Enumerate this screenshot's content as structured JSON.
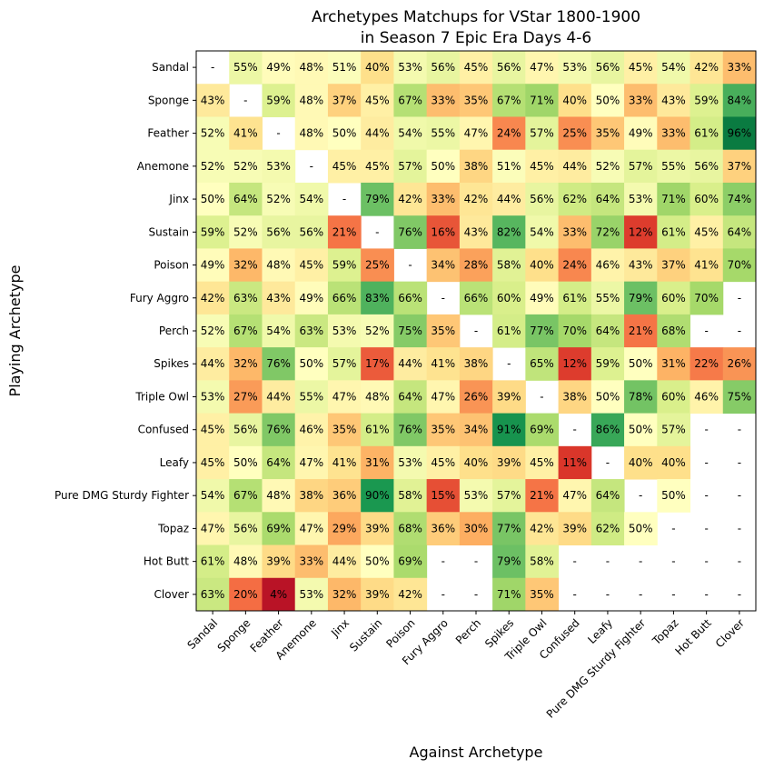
{
  "chart_data": {
    "type": "heatmap",
    "title": [
      "Archetypes Matchups for VStar 1800-1900",
      "in Season 7 Epic Era Days 4-6"
    ],
    "xlabel": "Against Archetype",
    "ylabel": "Playing Archetype",
    "rows": [
      "Sandal",
      "Sponge",
      "Feather",
      "Anemone",
      "Jinx",
      "Sustain",
      "Poison",
      "Fury Aggro",
      "Perch",
      "Spikes",
      "Triple Owl",
      "Confused",
      "Leafy",
      "Pure DMG Sturdy Fighter",
      "Topaz",
      "Hot Butt",
      "Clover"
    ],
    "columns": [
      "Sandal",
      "Sponge",
      "Feather",
      "Anemone",
      "Jinx",
      "Sustain",
      "Poison",
      "Fury Aggro",
      "Perch",
      "Spikes",
      "Triple Owl",
      "Confused",
      "Leafy",
      "Pure DMG Sturdy Fighter",
      "Topaz",
      "Hot Butt",
      "Clover"
    ],
    "values": [
      [
        null,
        55,
        49,
        48,
        51,
        40,
        53,
        56,
        45,
        56,
        47,
        53,
        56,
        45,
        54,
        42,
        33
      ],
      [
        43,
        null,
        59,
        48,
        37,
        45,
        67,
        33,
        35,
        67,
        71,
        40,
        50,
        33,
        43,
        59,
        84
      ],
      [
        52,
        41,
        null,
        48,
        50,
        44,
        54,
        55,
        47,
        24,
        57,
        25,
        35,
        49,
        33,
        61,
        96
      ],
      [
        52,
        52,
        53,
        null,
        45,
        45,
        57,
        50,
        38,
        51,
        45,
        44,
        52,
        57,
        55,
        56,
        37
      ],
      [
        50,
        64,
        52,
        54,
        null,
        79,
        42,
        33,
        42,
        44,
        56,
        62,
        64,
        53,
        71,
        60,
        74
      ],
      [
        59,
        52,
        56,
        56,
        21,
        null,
        76,
        16,
        43,
        82,
        54,
        33,
        72,
        12,
        61,
        45,
        64
      ],
      [
        49,
        32,
        48,
        45,
        59,
        25,
        null,
        34,
        28,
        58,
        40,
        24,
        46,
        43,
        37,
        41,
        70
      ],
      [
        42,
        63,
        43,
        49,
        66,
        83,
        66,
        null,
        66,
        60,
        49,
        61,
        55,
        79,
        60,
        70,
        null
      ],
      [
        52,
        67,
        54,
        63,
        53,
        52,
        75,
        35,
        null,
        61,
        77,
        70,
        64,
        21,
        68,
        null,
        null
      ],
      [
        44,
        32,
        76,
        50,
        57,
        17,
        44,
        41,
        38,
        null,
        65,
        12,
        59,
        50,
        31,
        22,
        26
      ],
      [
        53,
        27,
        44,
        55,
        47,
        48,
        64,
        47,
        26,
        39,
        null,
        38,
        50,
        78,
        60,
        46,
        75
      ],
      [
        45,
        56,
        76,
        46,
        35,
        61,
        76,
        35,
        34,
        91,
        69,
        null,
        86,
        50,
        57,
        null,
        null
      ],
      [
        45,
        50,
        64,
        47,
        41,
        31,
        53,
        45,
        40,
        39,
        45,
        11,
        null,
        40,
        40,
        null,
        null
      ],
      [
        54,
        67,
        48,
        38,
        36,
        90,
        58,
        15,
        53,
        57,
        21,
        47,
        64,
        null,
        50,
        null,
        null
      ],
      [
        47,
        56,
        69,
        47,
        29,
        39,
        68,
        36,
        30,
        77,
        42,
        39,
        62,
        50,
        null,
        null,
        null
      ],
      [
        61,
        48,
        39,
        33,
        44,
        50,
        69,
        null,
        null,
        79,
        58,
        null,
        null,
        null,
        null,
        null,
        null
      ],
      [
        63,
        20,
        4,
        53,
        32,
        39,
        42,
        null,
        null,
        71,
        35,
        null,
        null,
        null,
        null,
        null,
        null
      ]
    ],
    "value_suffix": "%",
    "missing_label": "-",
    "colormap": "RdYlGn",
    "colorscale_range": [
      0,
      100
    ],
    "grid": false,
    "legend": "none"
  }
}
